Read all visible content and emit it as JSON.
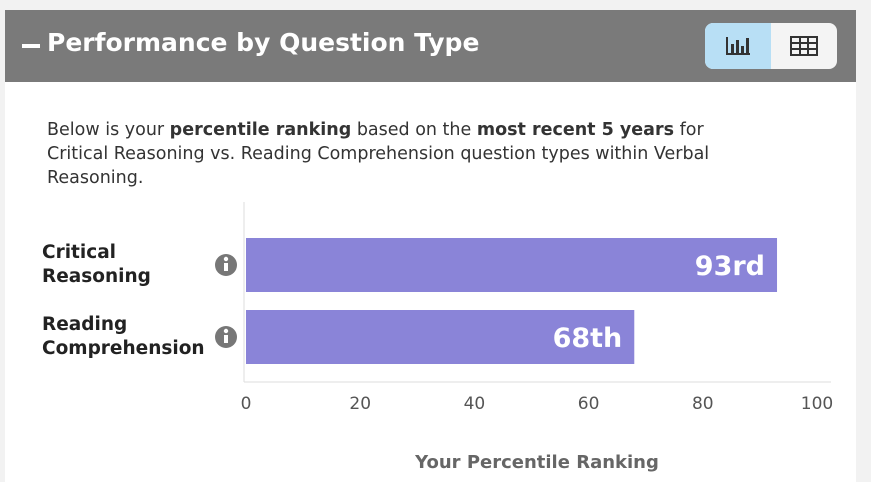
{
  "chart_data": {
    "type": "bar",
    "orientation": "horizontal",
    "title": "Performance by Question Type",
    "subtitle_parts": [
      "Below is your ",
      "percentile ranking",
      " based on the ",
      "most recent 5 years",
      " for Critical Reasoning vs. Reading Comprehension question types within Verbal Reasoning."
    ],
    "categories": [
      "Critical Reasoning",
      "Reading Comprehension"
    ],
    "values": [
      93,
      68
    ],
    "value_labels": [
      "93rd",
      "68th"
    ],
    "color": "#8a84d8",
    "xlabel": "Your Percentile Ranking",
    "xlim": [
      0,
      100
    ],
    "xticks": [
      0,
      20,
      40,
      60,
      80,
      100
    ]
  }
}
